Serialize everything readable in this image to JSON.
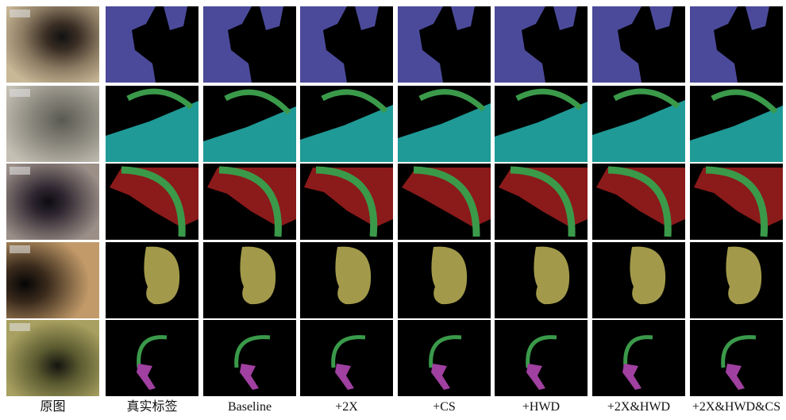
{
  "columns": [
    "原图",
    "真实标签",
    "Baseline",
    "+2X",
    "+CS",
    "+HWD",
    "+2X&HWD",
    "+2X&HWD&CS"
  ]
}
